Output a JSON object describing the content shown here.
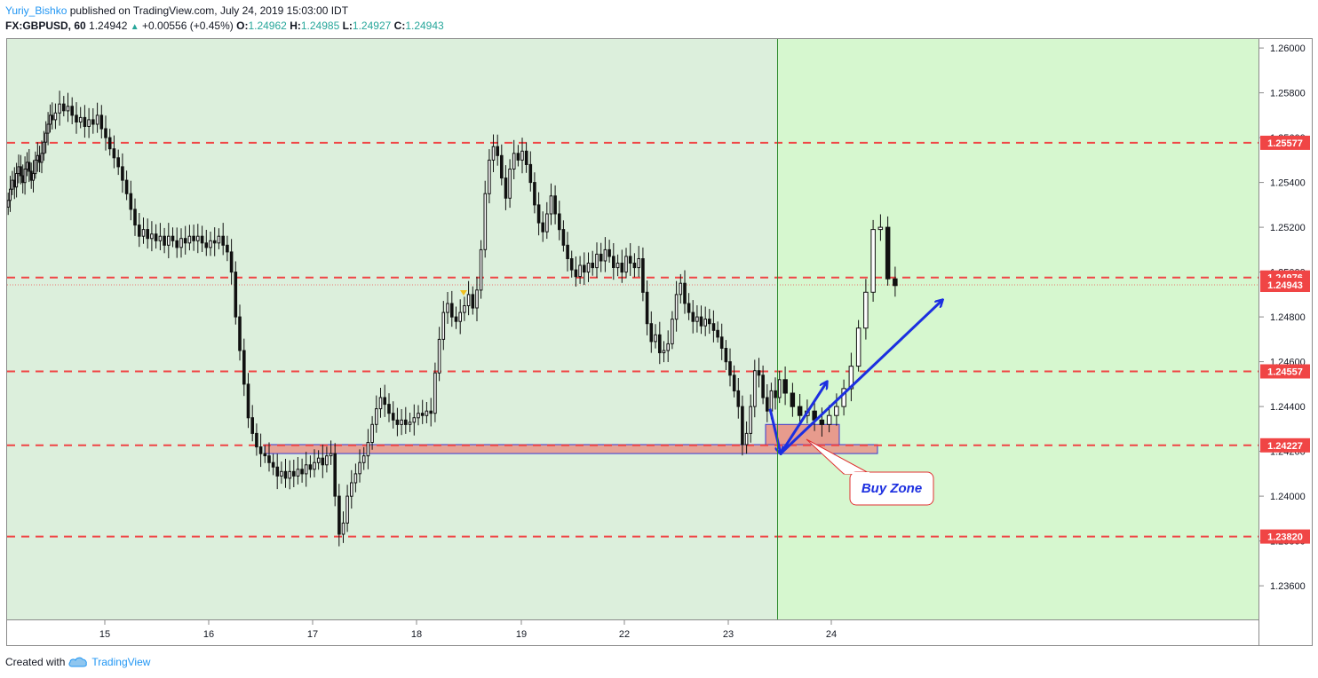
{
  "header": {
    "author": "Yuriy_Bishko",
    "published_text": "published on TradingView.com, July 24, 2019 15:03:00 IDT",
    "symbol": "FX:GBPUSD, 60",
    "last": "1.24942",
    "change": "+0.00556 (+0.45%)",
    "o_label": "O:",
    "o": "1.24962",
    "h_label": "H:",
    "h": "1.24985",
    "l_label": "L:",
    "l": "1.24927",
    "c_label": "C:",
    "c": "1.24943"
  },
  "footer": {
    "created_with": "Created with",
    "brand": "TradingView"
  },
  "colors": {
    "bg_left": "#dcefdc",
    "bg_right": "#d6f7cf",
    "level_line": "#f04545",
    "zone_fill": "#e99085",
    "zone_border": "#3a3ad0",
    "arrow": "#1c2fe0",
    "candle": "#111111"
  },
  "annotation": {
    "label": "Buy Zone"
  },
  "chart_data": {
    "type": "candlestick",
    "symbol": "FX:GBPUSD",
    "interval": "60",
    "ylim": [
      1.2345,
      1.2604
    ],
    "y_ticks": [
      "1.26000",
      "1.25800",
      "1.25600",
      "1.25400",
      "1.25200",
      "1.25000",
      "1.24800",
      "1.24600",
      "1.24400",
      "1.24200",
      "1.24000",
      "1.23800",
      "1.23600"
    ],
    "x_ticks": [
      "15",
      "16",
      "17",
      "18",
      "19",
      "22",
      "23",
      "24"
    ],
    "levels": [
      {
        "value": 1.25577,
        "label": "1.25577"
      },
      {
        "value": 1.24976,
        "label": "1.24976"
      },
      {
        "value": 1.24557,
        "label": "1.24557"
      },
      {
        "value": 1.24227,
        "label": "1.24227"
      },
      {
        "value": 1.2382,
        "label": "1.23820"
      }
    ],
    "last_price": {
      "value": 1.24943,
      "label": "1.24943"
    },
    "buy_zone": [
      1.2419,
      1.2423
    ],
    "buy_zone_recent": [
      1.2423,
      1.2432
    ],
    "vertical_marker_day": "23",
    "grid": false,
    "close_series": [
      {
        "day": "14",
        "closes": [
          1.2532,
          1.2537,
          1.2541,
          1.2538,
          1.2544,
          1.2547,
          1.2543,
          1.254,
          1.2546,
          1.2549,
          1.2545,
          1.2541,
          1.2544,
          1.255,
          1.2552,
          1.2549,
          1.2553,
          1.2558,
          1.2562,
          1.2566,
          1.257,
          1.2568
        ]
      },
      {
        "day": "15",
        "closes": [
          1.2571,
          1.2575,
          1.2572,
          1.2574,
          1.257,
          1.2567,
          1.2569,
          1.2565,
          1.2568,
          1.2566,
          1.257,
          1.2564,
          1.256,
          1.2555,
          1.2551,
          1.2547,
          1.2541,
          1.2535,
          1.2528,
          1.2521,
          1.2516,
          1.2519,
          1.2515,
          1.2517,
          1.2514
        ]
      },
      {
        "day": "16",
        "closes": [
          1.2516,
          1.2512,
          1.2516,
          1.2514,
          1.2511,
          1.2515,
          1.2513,
          1.2516,
          1.2514,
          1.2516,
          1.2513,
          1.2511,
          1.2514,
          1.2513,
          1.2516,
          1.2512,
          1.2509,
          1.25,
          1.248,
          1.2465,
          1.245,
          1.2435,
          1.2428,
          1.2422,
          1.2419
        ]
      },
      {
        "day": "17",
        "closes": [
          1.2418,
          1.2415,
          1.2413,
          1.2409,
          1.2411,
          1.2408,
          1.2411,
          1.2409,
          1.2412,
          1.241,
          1.2414,
          1.2412,
          1.2415,
          1.2417,
          1.2414,
          1.2418,
          1.2419,
          1.24,
          1.2383,
          1.2388,
          1.24,
          1.2406,
          1.241,
          1.2415,
          1.2418
        ]
      },
      {
        "day": "18",
        "closes": [
          1.2424,
          1.2432,
          1.2439,
          1.2444,
          1.2441,
          1.2437,
          1.2434,
          1.2432,
          1.2434,
          1.2432,
          1.2433,
          1.2435,
          1.2437,
          1.2436,
          1.2438,
          1.2437,
          1.2455,
          1.247,
          1.2482,
          1.2486,
          1.248,
          1.2478,
          1.2482,
          1.2485,
          1.249
        ]
      },
      {
        "day": "19",
        "closes": [
          1.2484,
          1.2492,
          1.251,
          1.2535,
          1.255,
          1.2556,
          1.2552,
          1.2542,
          1.2533,
          1.2546,
          1.2553,
          1.255,
          1.2554,
          1.2548,
          1.254,
          1.253,
          1.2522,
          1.2518,
          1.2526,
          1.2534,
          1.2526,
          1.2519,
          1.2512,
          1.2506,
          1.2501
        ]
      },
      {
        "day": "22",
        "closes": [
          1.2498,
          1.2503,
          1.25,
          1.2504,
          1.2502,
          1.2508,
          1.2505,
          1.251,
          1.2507,
          1.2502,
          1.2504,
          1.25,
          1.2507,
          1.2504,
          1.2502,
          1.2506,
          1.2491,
          1.2477,
          1.2469,
          1.2472,
          1.2464,
          1.2465,
          1.2468,
          1.2479,
          1.249
        ]
      },
      {
        "day": "23",
        "closes": [
          1.2495,
          1.2486,
          1.2482,
          1.2478,
          1.248,
          1.2476,
          1.2479,
          1.2477,
          1.2474,
          1.2471,
          1.2466,
          1.246,
          1.2454,
          1.2447,
          1.244,
          1.2423,
          1.2428,
          1.244,
          1.2456,
          1.2454,
          1.2444,
          1.2438,
          1.2447,
          1.2444,
          1.2452
        ]
      },
      {
        "day": "24",
        "closes": [
          1.2446,
          1.244,
          1.2436,
          1.2438,
          1.2434,
          1.2432,
          1.2436,
          1.244,
          1.2448,
          1.2458,
          1.2475,
          1.2491,
          1.2519,
          1.252,
          1.2497,
          1.2494
        ]
      }
    ]
  }
}
